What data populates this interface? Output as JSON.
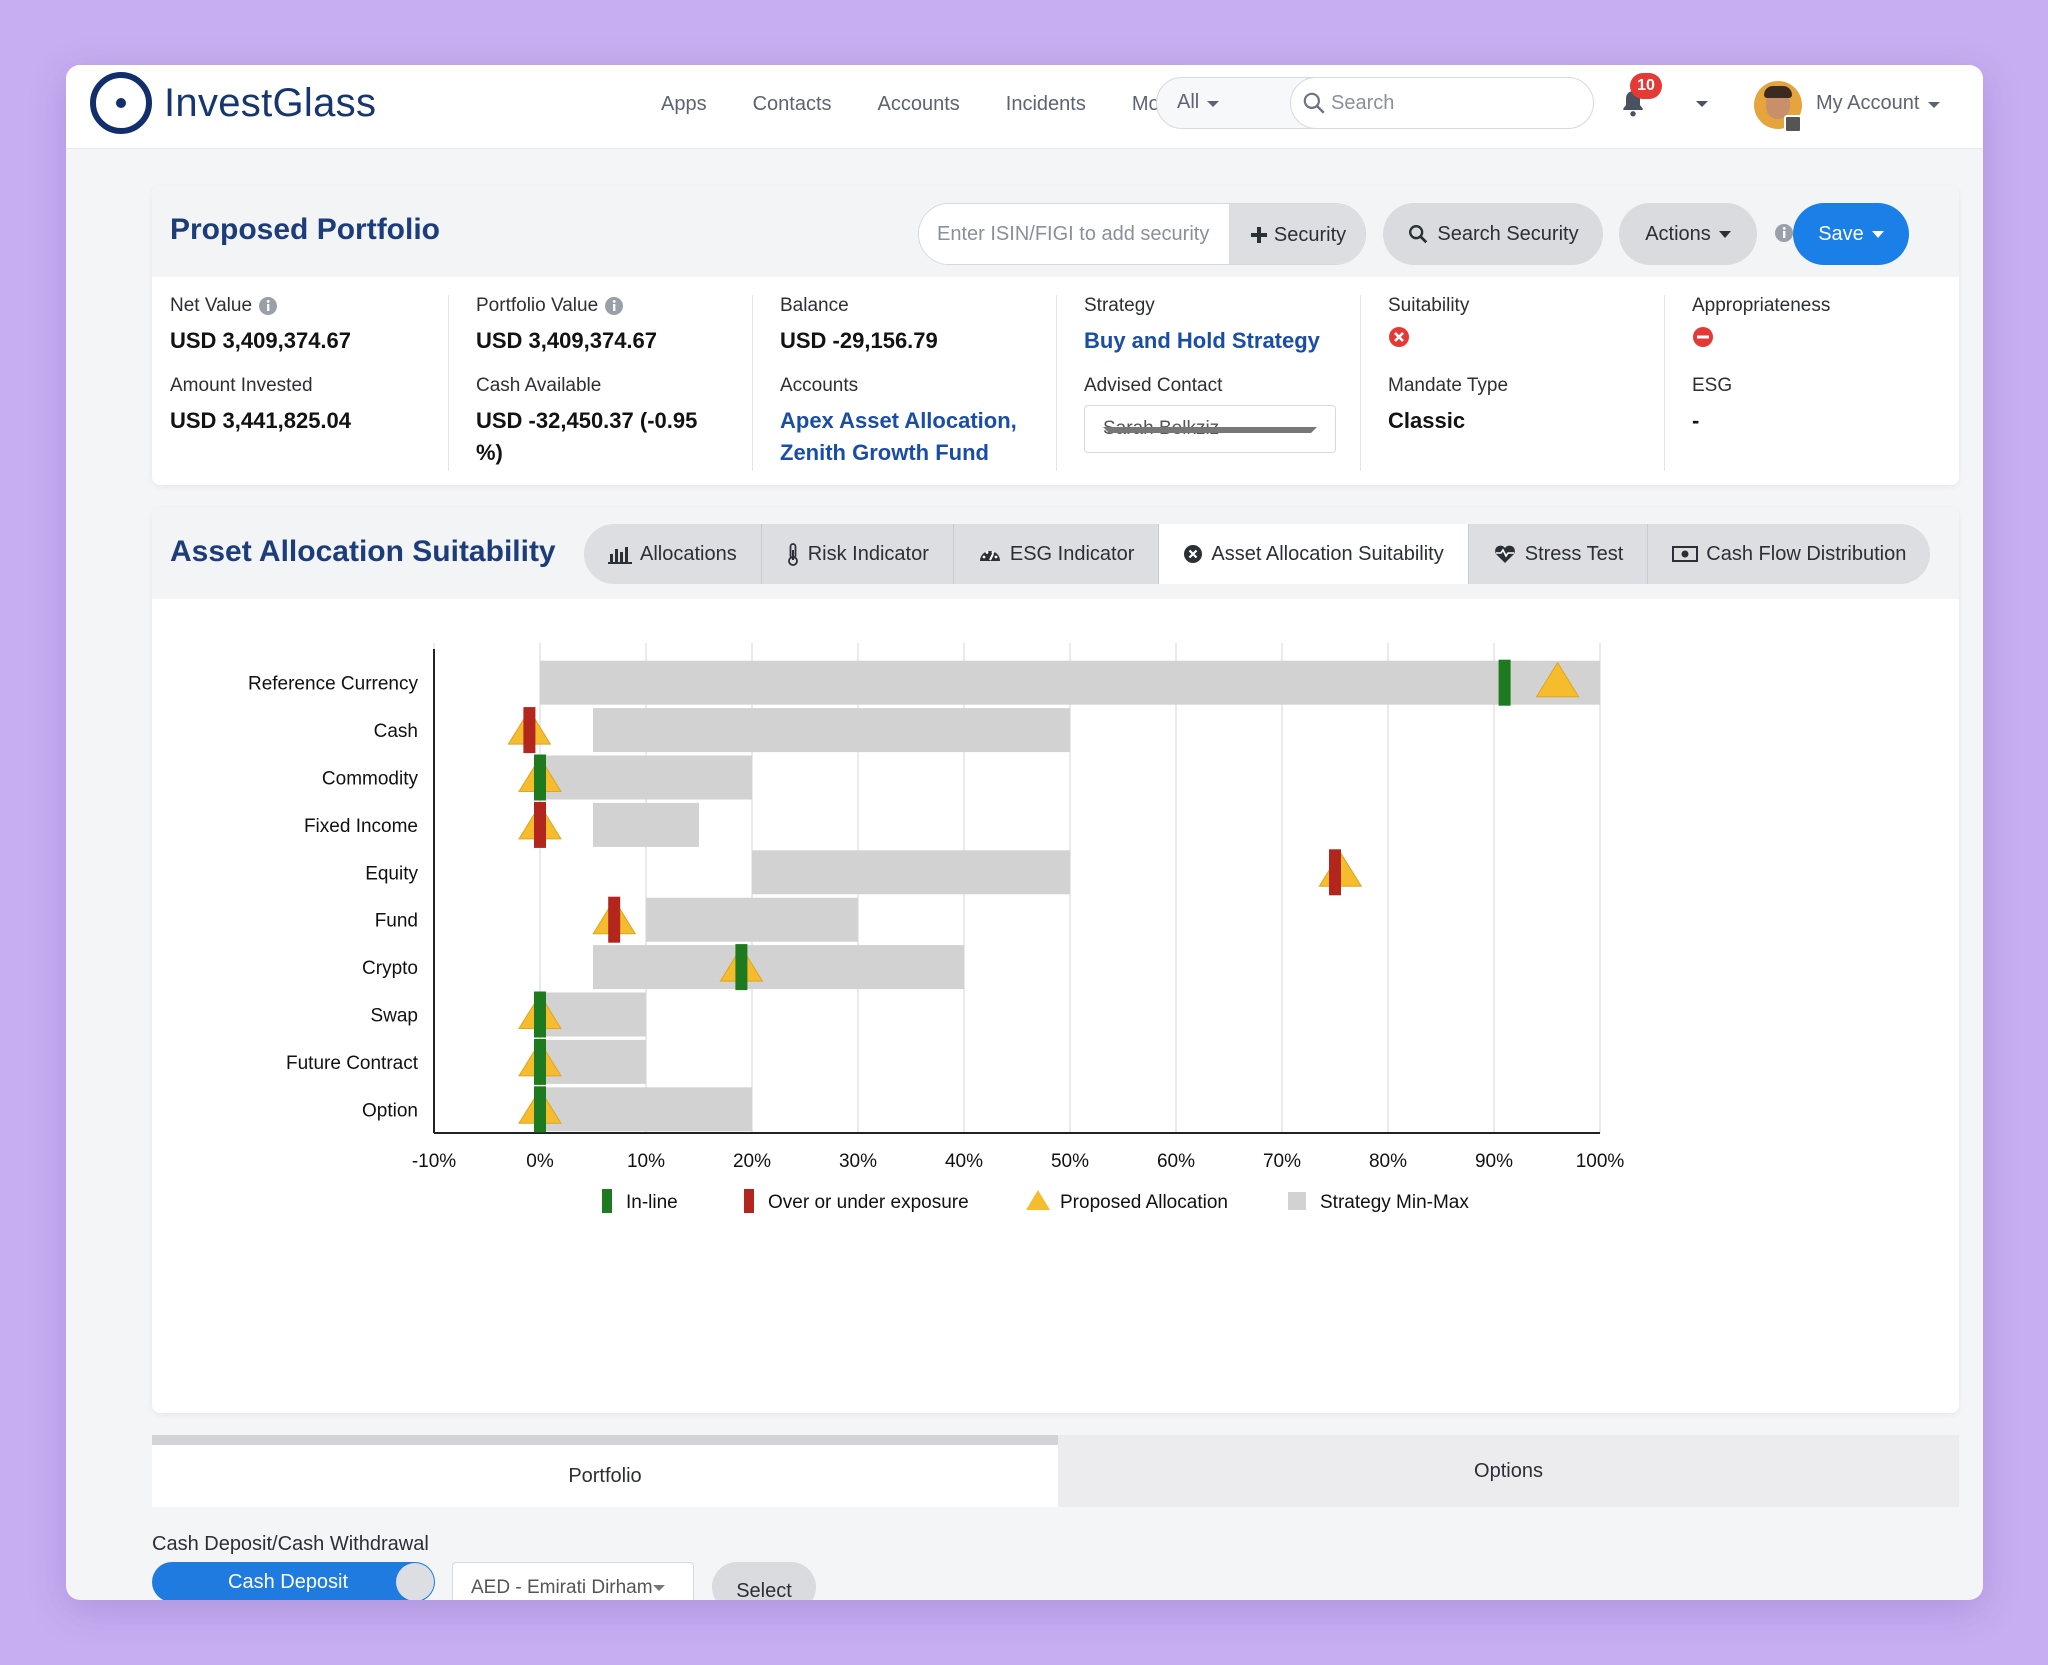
{
  "nav": {
    "brand": "InvestGlass",
    "links": [
      "Apps",
      "Contacts",
      "Accounts",
      "Incidents",
      "More"
    ],
    "scope": "All",
    "search_placeholder": "Search",
    "notifications": "10",
    "account": "My Account"
  },
  "portfolio": {
    "title": "Proposed Portfolio",
    "isin_placeholder": "Enter ISIN/FIGI to add security",
    "add_security": "Security",
    "search_security": "Search Security",
    "actions": "Actions",
    "save": "Save",
    "metrics": {
      "net_value": {
        "label": "Net Value",
        "value": "USD 3,409,374.67"
      },
      "portfolio_value": {
        "label": "Portfolio Value",
        "value": "USD 3,409,374.67"
      },
      "balance": {
        "label": "Balance",
        "value": "USD -29,156.79"
      },
      "strategy": {
        "label": "Strategy",
        "value": "Buy and Hold Strategy"
      },
      "suitability": {
        "label": "Suitability"
      },
      "appropriateness": {
        "label": "Appropriateness"
      },
      "amount_invested": {
        "label": "Amount Invested",
        "value": "USD 3,441,825.04"
      },
      "cash_available": {
        "label": "Cash Available",
        "value_line1": "USD -32,450.37 (-0.95",
        "value_line2": "%)"
      },
      "accounts": {
        "label": "Accounts",
        "value_line1": "Apex Asset Allocation,",
        "value_line2": "Zenith Growth Fund"
      },
      "advised_contact": {
        "label": "Advised Contact",
        "value": "Sarah Belkziz"
      },
      "mandate_type": {
        "label": "Mandate Type",
        "value": "Classic"
      },
      "esg": {
        "label": "ESG",
        "value": "-"
      }
    }
  },
  "suitability_panel": {
    "title": "Asset Allocation Suitability",
    "tabs": [
      "Allocations",
      "Risk Indicator",
      "ESG Indicator",
      "Asset Allocation Suitability",
      "Stress Test",
      "Cash Flow Distribution"
    ],
    "active_tab": "Asset Allocation Suitability"
  },
  "chart_data": {
    "type": "bar",
    "orientation": "horizontal",
    "categories": [
      "Reference Currency",
      "Cash",
      "Commodity",
      "Fixed Income",
      "Equity",
      "Fund",
      "Crypto",
      "Swap",
      "Future Contract",
      "Option"
    ],
    "strategy_min_max": [
      [
        0,
        100
      ],
      [
        5,
        50
      ],
      [
        0,
        20
      ],
      [
        5,
        15
      ],
      [
        20,
        50
      ],
      [
        10,
        30
      ],
      [
        5,
        40
      ],
      [
        0,
        10
      ],
      [
        0,
        10
      ],
      [
        0,
        20
      ]
    ],
    "proposed_allocation": [
      96,
      -1,
      0,
      0,
      75.5,
      7,
      19,
      0,
      0,
      0
    ],
    "current_marker": [
      91,
      -1,
      0,
      0,
      75,
      7,
      19,
      0,
      0,
      0
    ],
    "marker_status": [
      "in-line",
      "over-under",
      "in-line",
      "over-under",
      "over-under",
      "over-under",
      "in-line",
      "in-line",
      "in-line",
      "in-line"
    ],
    "xlim": [
      -10,
      100
    ],
    "xticks": [
      "-10%",
      "0%",
      "10%",
      "20%",
      "30%",
      "40%",
      "50%",
      "60%",
      "70%",
      "80%",
      "90%",
      "100%"
    ],
    "tick_values": [
      -10,
      0,
      10,
      20,
      30,
      40,
      50,
      60,
      70,
      80,
      90,
      100
    ],
    "grid": true,
    "legend": [
      "In-line",
      "Over or under exposure",
      "Proposed Allocation",
      "Strategy Min-Max"
    ],
    "legend_position": "bottom",
    "colors": {
      "in_line": "#1e7a1e",
      "over_under": "#b3261e",
      "proposed": "#f5bd2e",
      "range": "#d2d2d2"
    }
  },
  "bottom": {
    "tab_portfolio": "Portfolio",
    "tab_options": "Options",
    "cash_label": "Cash Deposit/Cash Withdrawal",
    "cash_toggle": "Cash Deposit",
    "currency": "AED - Emirati Dirham",
    "select": "Select"
  }
}
